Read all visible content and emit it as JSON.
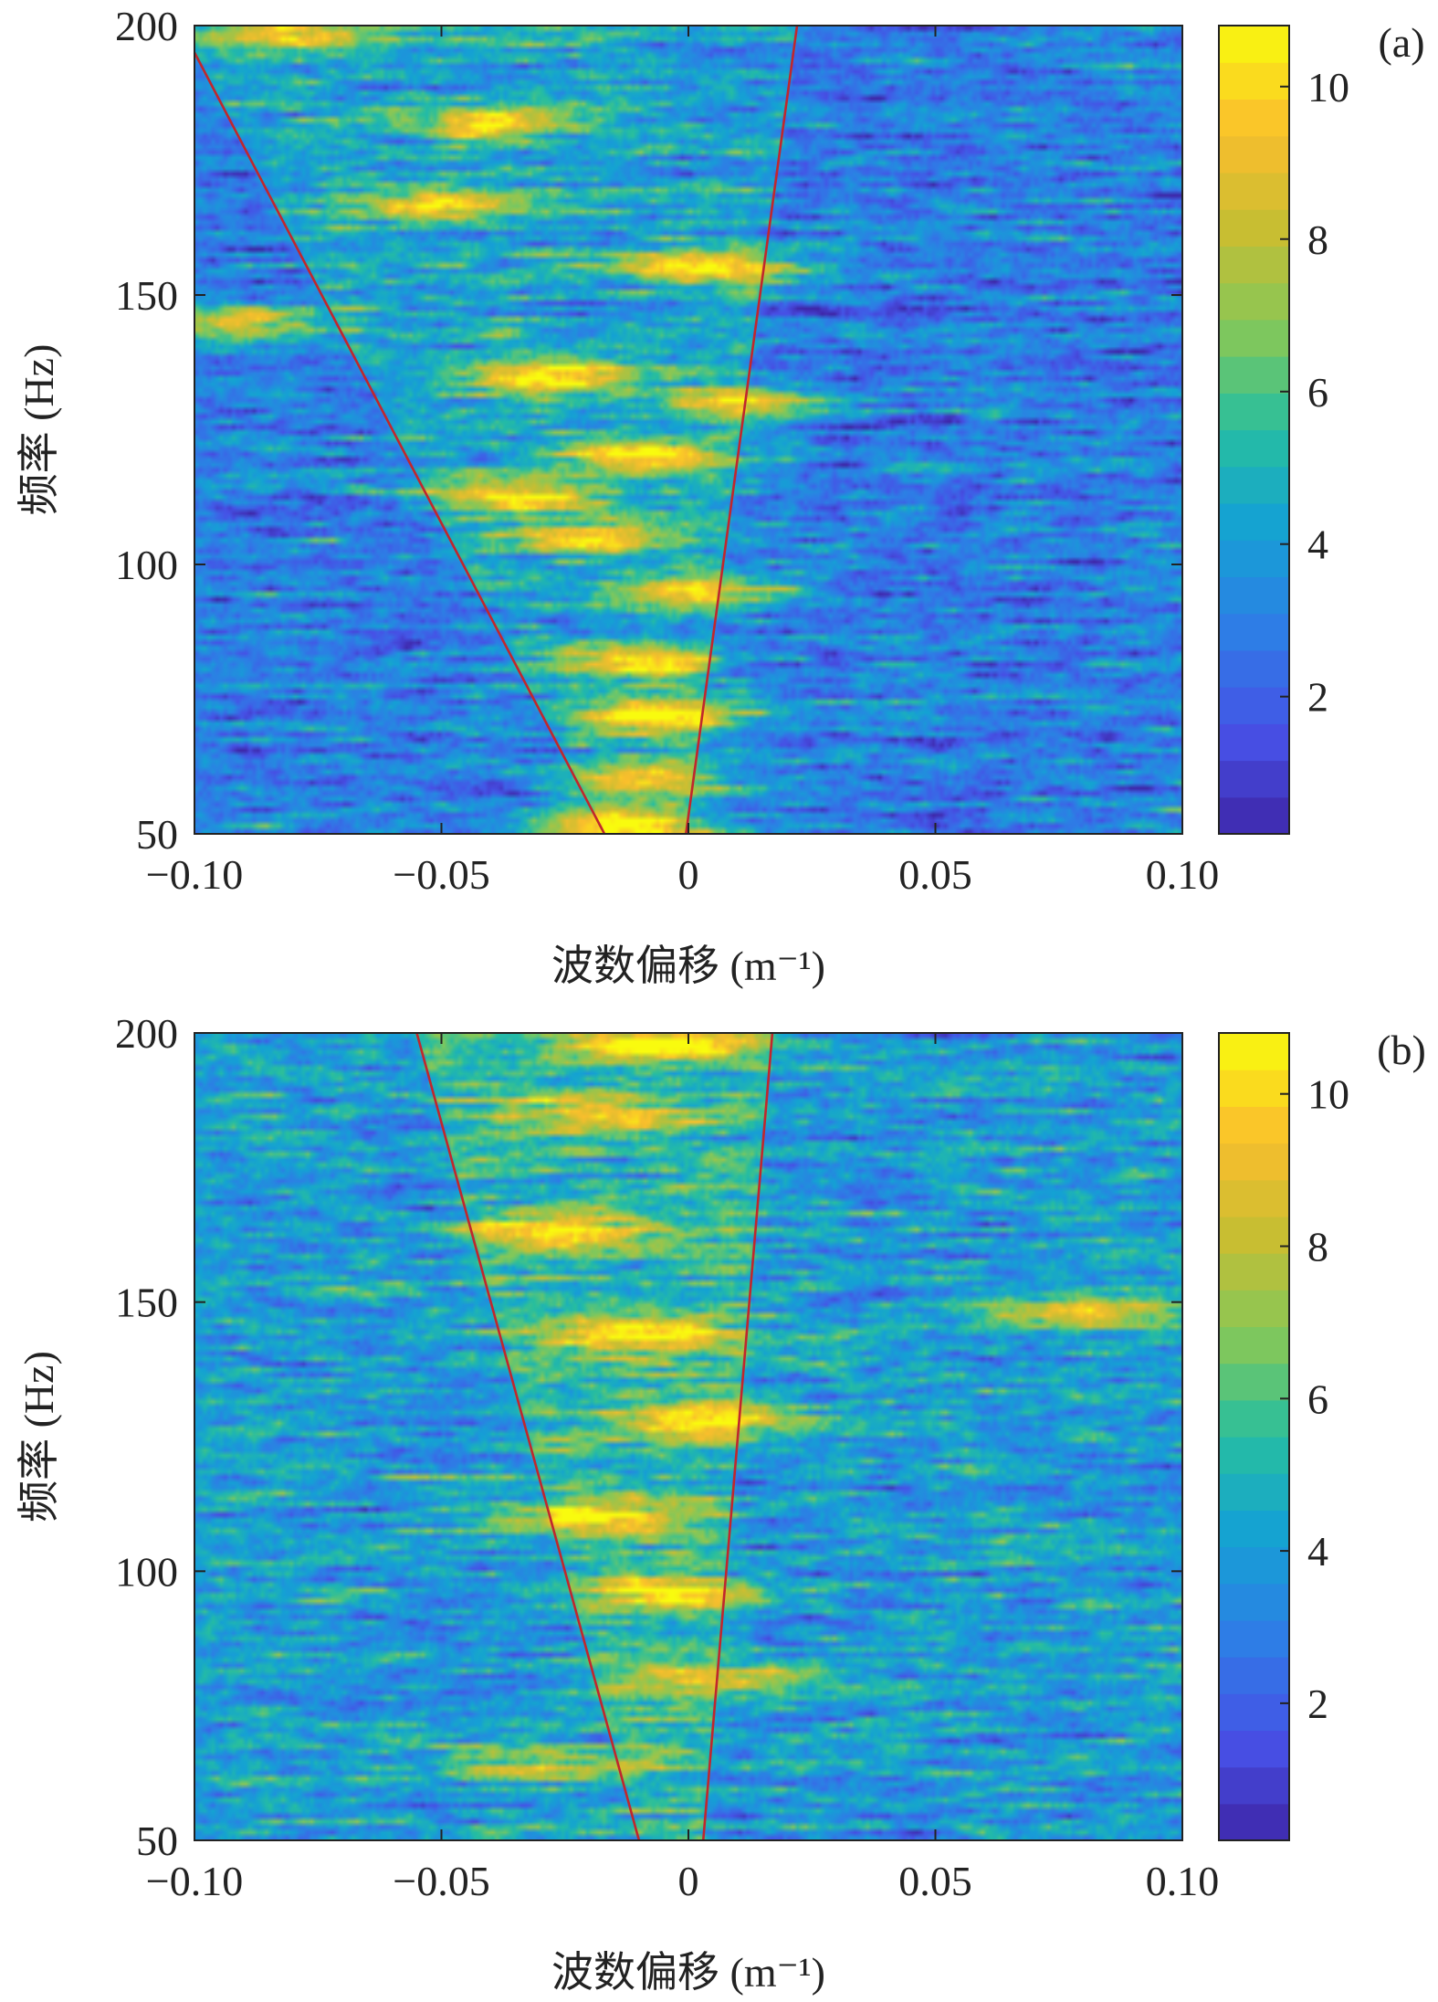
{
  "chart_data": [
    {
      "type": "heatmap",
      "panel_label": "(a)",
      "xlabel": "波数偏移 (m⁻¹)",
      "ylabel": "频率 (Hz)",
      "xlim": [
        -0.1,
        0.1
      ],
      "ylim": [
        50,
        200
      ],
      "x_ticks": [
        -0.1,
        -0.05,
        0,
        0.05,
        0.1
      ],
      "x_tick_labels": [
        "−0.10",
        "−0.05",
        "0",
        "0.05",
        "0.10"
      ],
      "y_ticks": [
        50,
        100,
        150,
        200
      ],
      "y_tick_labels": [
        "50",
        "100",
        "150",
        "200"
      ],
      "colorbar": {
        "range": [
          0.2,
          10.8
        ],
        "ticks": [
          2,
          4,
          6,
          8,
          10
        ],
        "tick_labels": [
          "2",
          "4",
          "6",
          "8",
          "10"
        ],
        "colormap": "parula"
      },
      "overlay_lines": [
        {
          "from": [
            -0.017,
            50
          ],
          "to": [
            -0.1,
            195
          ]
        },
        {
          "from": [
            -0.0005,
            50
          ],
          "to": [
            0.022,
            200
          ]
        }
      ],
      "ridge": [
        {
          "f": 52,
          "k": -0.015,
          "amp": 10.2
        },
        {
          "f": 60,
          "k": -0.008,
          "amp": 9.0
        },
        {
          "f": 72,
          "k": -0.004,
          "amp": 10.4
        },
        {
          "f": 82,
          "k": -0.012,
          "amp": 9.0
        },
        {
          "f": 95,
          "k": 0.002,
          "amp": 9.4
        },
        {
          "f": 105,
          "k": -0.02,
          "amp": 8.6
        },
        {
          "f": 113,
          "k": -0.035,
          "amp": 9.0
        },
        {
          "f": 120,
          "k": -0.008,
          "amp": 10.0
        },
        {
          "f": 130,
          "k": 0.012,
          "amp": 8.6
        },
        {
          "f": 135,
          "k": -0.028,
          "amp": 10.0
        },
        {
          "f": 145,
          "k": -0.092,
          "amp": 9.0
        },
        {
          "f": 155,
          "k": 0.006,
          "amp": 9.6
        },
        {
          "f": 167,
          "k": -0.05,
          "amp": 7.8
        },
        {
          "f": 182,
          "k": -0.04,
          "amp": 8.6
        },
        {
          "f": 198,
          "k": -0.08,
          "amp": 8.6
        }
      ],
      "background_level": 3.0
    },
    {
      "type": "heatmap",
      "panel_label": "(b)",
      "xlabel": "波数偏移 (m⁻¹)",
      "ylabel": "频率 (Hz)",
      "xlim": [
        -0.1,
        0.1
      ],
      "ylim": [
        50,
        200
      ],
      "x_ticks": [
        -0.1,
        -0.05,
        0,
        0.05,
        0.1
      ],
      "x_tick_labels": [
        "−0.10",
        "−0.05",
        "0",
        "0.05",
        "0.10"
      ],
      "y_ticks": [
        50,
        100,
        150,
        200
      ],
      "y_tick_labels": [
        "50",
        "100",
        "150",
        "200"
      ],
      "colorbar": {
        "range": [
          0.2,
          10.8
        ],
        "ticks": [
          2,
          4,
          6,
          8,
          10
        ],
        "tick_labels": [
          "2",
          "4",
          "6",
          "8",
          "10"
        ],
        "colormap": "parula"
      },
      "overlay_lines": [
        {
          "from": [
            -0.01,
            50
          ],
          "to": [
            -0.055,
            200
          ]
        },
        {
          "from": [
            0.003,
            50
          ],
          "to": [
            0.017,
            200
          ]
        }
      ],
      "ridge": [
        {
          "f": 198,
          "k": -0.005,
          "amp": 10.4
        },
        {
          "f": 185,
          "k": -0.02,
          "amp": 8.6
        },
        {
          "f": 163,
          "k": -0.025,
          "amp": 10.2
        },
        {
          "f": 144,
          "k": -0.01,
          "amp": 10.2
        },
        {
          "f": 148,
          "k": 0.08,
          "amp": 9.4
        },
        {
          "f": 128,
          "k": 0.005,
          "amp": 10.4
        },
        {
          "f": 110,
          "k": -0.02,
          "amp": 9.8
        },
        {
          "f": 96,
          "k": -0.005,
          "amp": 9.6
        },
        {
          "f": 80,
          "k": 0.01,
          "amp": 8.8
        },
        {
          "f": 64,
          "k": -0.03,
          "amp": 8.4
        }
      ],
      "background_level": 4.0
    }
  ]
}
